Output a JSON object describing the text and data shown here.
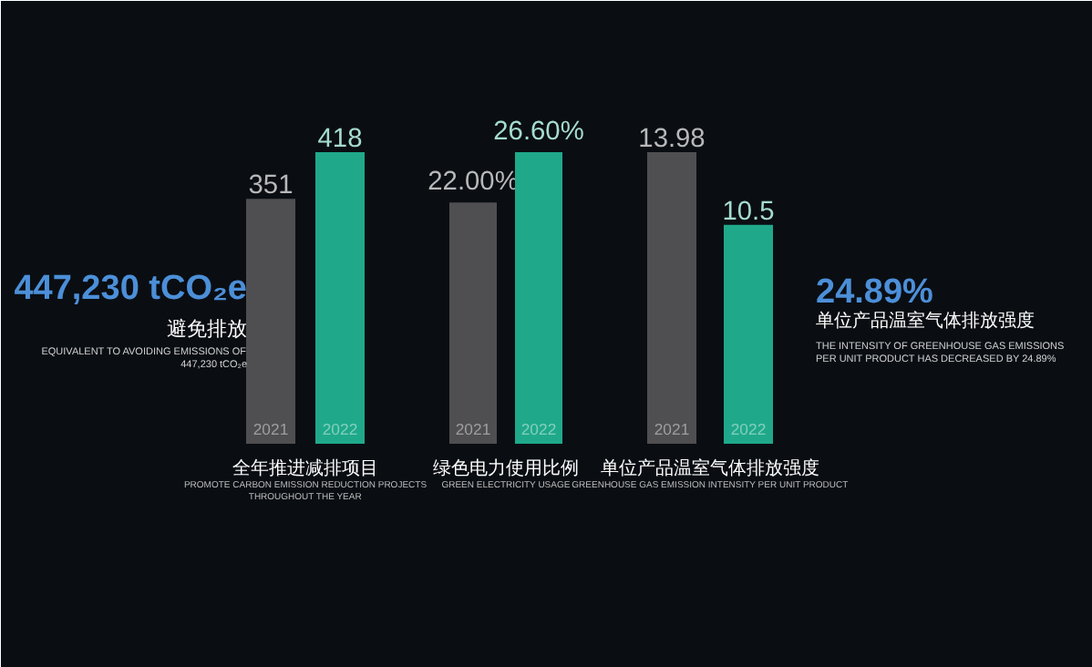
{
  "chart_data": [
    {
      "type": "bar",
      "xlabel": "全年推进减排项目",
      "categories": [
        "2021",
        "2022"
      ],
      "values": [
        351,
        418
      ],
      "colors": [
        "#4f4f52",
        "#1fa98a"
      ],
      "tick_labels": false,
      "data_labels": true,
      "annotations": [
        "447,230 tCO₂e",
        "避免排放",
        "EQUIVALENT TO AVOIDING EMISSIONS OF 447,230 tCO₂e",
        "PROMOTE CARBON EMISSION REDUCTION PROJECTS THROUGHOUT THE YEAR"
      ]
    },
    {
      "type": "bar",
      "xlabel": "绿色电力使用比例",
      "categories": [
        "2021",
        "2022"
      ],
      "values": [
        22.0,
        26.6
      ],
      "value_labels": [
        "22.00%",
        "26.60%"
      ],
      "colors": [
        "#4f4f52",
        "#1fa98a"
      ],
      "tick_labels": false,
      "annotations": [
        "GREEN ELECTRICITY USAGE"
      ]
    },
    {
      "type": "bar",
      "xlabel": "单位产品温室气体排放强度",
      "categories": [
        "2021",
        "2022"
      ],
      "values": [
        13.98,
        10.5
      ],
      "colors": [
        "#4f4f52",
        "#1fa98a"
      ],
      "tick_labels": false,
      "data_labels": true,
      "annotations": [
        "GREENHOUSE GAS EMISSION INTENSITY PER UNIT PRODUCT",
        "24.89%",
        "单位产品温室气体排放强度",
        "THE INTENSITY OF GREENHOUSE GAS EMISSIONS PER UNIT PRODUCT HAS DECREASED BY 24.89%"
      ]
    }
  ]
}
